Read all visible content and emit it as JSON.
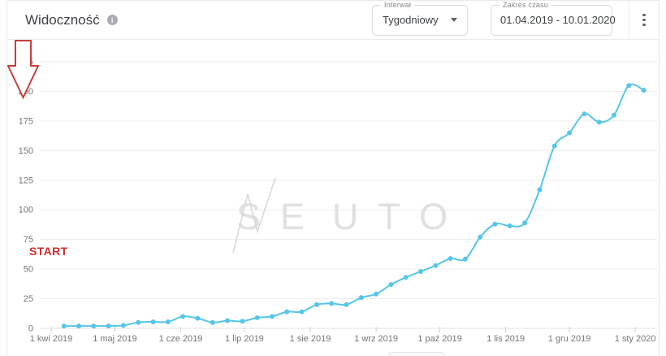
{
  "card": {
    "header": {
      "title": "Widoczność",
      "interval_label": "Interwał",
      "interval_value": "Tygodniowy",
      "range_label": "Zakres czasu",
      "range_value": "01.04.2019 - 10.01.2020"
    }
  },
  "watermark": {
    "text": "SENUTO",
    "left": "SE",
    "right": "UTO"
  },
  "annotation": {
    "text": "START"
  },
  "colors": {
    "series": "#56c6e8",
    "grid": "#ededed",
    "axis_text": "#757575",
    "annotation_text": "#d22c2c",
    "annotation_arrow": "#c5403c",
    "watermark": "#dadada"
  },
  "chart_data": {
    "type": "line",
    "title": "Widoczność",
    "interval": "Tygodniowy",
    "date_range": "01.04.2019 - 10.01.2020",
    "x_start": "2019-04-01",
    "x_dates": [
      "2019-04-07",
      "2019-04-14",
      "2019-04-21",
      "2019-04-28",
      "2019-05-05",
      "2019-05-12",
      "2019-05-19",
      "2019-05-26",
      "2019-06-02",
      "2019-06-09",
      "2019-06-16",
      "2019-06-23",
      "2019-06-30",
      "2019-07-07",
      "2019-07-14",
      "2019-07-21",
      "2019-07-28",
      "2019-08-04",
      "2019-08-11",
      "2019-08-18",
      "2019-08-25",
      "2019-09-01",
      "2019-09-08",
      "2019-09-15",
      "2019-09-22",
      "2019-09-29",
      "2019-10-06",
      "2019-10-13",
      "2019-10-20",
      "2019-10-27",
      "2019-11-03",
      "2019-11-10",
      "2019-11-17",
      "2019-11-24",
      "2019-12-01",
      "2019-12-08",
      "2019-12-15",
      "2019-12-22",
      "2019-12-29",
      "2020-01-05"
    ],
    "values": [
      2,
      2,
      2,
      2,
      2.5,
      5,
      5.5,
      5.5,
      10,
      8.5,
      5,
      6.5,
      6,
      9,
      10,
      14,
      14,
      20,
      21,
      20,
      26,
      29,
      37,
      43,
      48,
      53,
      59,
      58.5,
      77,
      88,
      86.5,
      89,
      117,
      154,
      165,
      181,
      174,
      180,
      205,
      201
    ],
    "x_tick_dates": [
      "2019-04-01",
      "2019-05-01",
      "2019-06-01",
      "2019-07-01",
      "2019-08-01",
      "2019-09-01",
      "2019-10-01",
      "2019-11-01",
      "2019-12-01",
      "2020-01-01"
    ],
    "x_tick_labels": [
      "1 kwi 2019",
      "1 maj 2019",
      "1 cze 2019",
      "1 lip 2019",
      "1 sie 2019",
      "1 wrz 2019",
      "1 paź 2019",
      "1 lis 2019",
      "1 gru 2019",
      "1 sty 2020"
    ],
    "y_ticks": [
      0,
      25,
      50,
      75,
      100,
      125,
      150,
      175,
      200,
      225
    ],
    "ylim": [
      0,
      237
    ],
    "grid": true,
    "legend": false,
    "ylabel": "",
    "xlabel": ""
  }
}
